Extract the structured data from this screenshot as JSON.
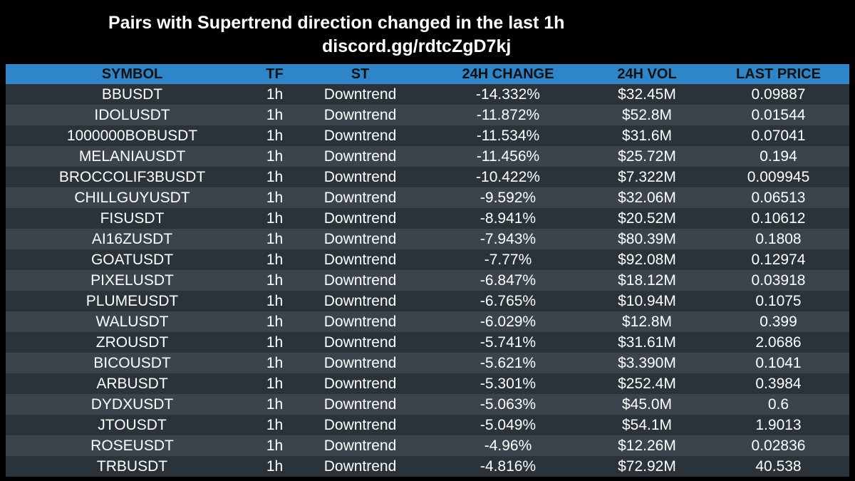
{
  "title": "Pairs with Supertrend direction changed in the last 1h",
  "subtitle": "discord.gg/rdtcZgD7kj",
  "columns": {
    "symbol": "SYMBOL",
    "tf": "TF",
    "st": "ST",
    "change": "24H CHANGE",
    "vol": "24H VOL",
    "price": "LAST PRICE"
  },
  "rows": [
    {
      "symbol": "BBUSDT",
      "tf": "1h",
      "st": "Downtrend",
      "change": "-14.332%",
      "vol": "$32.45M",
      "price": "0.09887"
    },
    {
      "symbol": "IDOLUSDT",
      "tf": "1h",
      "st": "Downtrend",
      "change": "-11.872%",
      "vol": "$52.8M",
      "price": "0.01544"
    },
    {
      "symbol": "1000000BOBUSDT",
      "tf": "1h",
      "st": "Downtrend",
      "change": "-11.534%",
      "vol": "$31.6M",
      "price": "0.07041"
    },
    {
      "symbol": "MELANIAUSDT",
      "tf": "1h",
      "st": "Downtrend",
      "change": "-11.456%",
      "vol": "$25.72M",
      "price": "0.194"
    },
    {
      "symbol": "BROCCOLIF3BUSDT",
      "tf": "1h",
      "st": "Downtrend",
      "change": "-10.422%",
      "vol": "$7.322M",
      "price": "0.009945"
    },
    {
      "symbol": "CHILLGUYUSDT",
      "tf": "1h",
      "st": "Downtrend",
      "change": "-9.592%",
      "vol": "$32.06M",
      "price": "0.06513"
    },
    {
      "symbol": "FISUSDT",
      "tf": "1h",
      "st": "Downtrend",
      "change": "-8.941%",
      "vol": "$20.52M",
      "price": "0.10612"
    },
    {
      "symbol": "AI16ZUSDT",
      "tf": "1h",
      "st": "Downtrend",
      "change": "-7.943%",
      "vol": "$80.39M",
      "price": "0.1808"
    },
    {
      "symbol": "GOATUSDT",
      "tf": "1h",
      "st": "Downtrend",
      "change": "-7.77%",
      "vol": "$92.08M",
      "price": "0.12974"
    },
    {
      "symbol": "PIXELUSDT",
      "tf": "1h",
      "st": "Downtrend",
      "change": "-6.847%",
      "vol": "$18.12M",
      "price": "0.03918"
    },
    {
      "symbol": "PLUMEUSDT",
      "tf": "1h",
      "st": "Downtrend",
      "change": "-6.765%",
      "vol": "$10.94M",
      "price": "0.1075"
    },
    {
      "symbol": "WALUSDT",
      "tf": "1h",
      "st": "Downtrend",
      "change": "-6.029%",
      "vol": "$12.8M",
      "price": "0.399"
    },
    {
      "symbol": "ZROUSDT",
      "tf": "1h",
      "st": "Downtrend",
      "change": "-5.741%",
      "vol": "$31.61M",
      "price": "2.0686"
    },
    {
      "symbol": "BICOUSDT",
      "tf": "1h",
      "st": "Downtrend",
      "change": "-5.621%",
      "vol": "$3.390M",
      "price": "0.1041"
    },
    {
      "symbol": "ARBUSDT",
      "tf": "1h",
      "st": "Downtrend",
      "change": "-5.301%",
      "vol": "$252.4M",
      "price": "0.3984"
    },
    {
      "symbol": "DYDXUSDT",
      "tf": "1h",
      "st": "Downtrend",
      "change": "-5.063%",
      "vol": "$45.0M",
      "price": "0.6"
    },
    {
      "symbol": "JTOUSDT",
      "tf": "1h",
      "st": "Downtrend",
      "change": "-5.049%",
      "vol": "$54.1M",
      "price": "1.9013"
    },
    {
      "symbol": "ROSEUSDT",
      "tf": "1h",
      "st": "Downtrend",
      "change": "-4.96%",
      "vol": "$12.26M",
      "price": "0.02836"
    },
    {
      "symbol": "TRBUSDT",
      "tf": "1h",
      "st": "Downtrend",
      "change": "-4.816%",
      "vol": "$72.92M",
      "price": "40.538"
    }
  ],
  "colors": {
    "background": "#000000",
    "header": "#2e86c8",
    "row_dark": "#2a323a",
    "row_light": "#3b444d",
    "text": "#ffffff"
  }
}
